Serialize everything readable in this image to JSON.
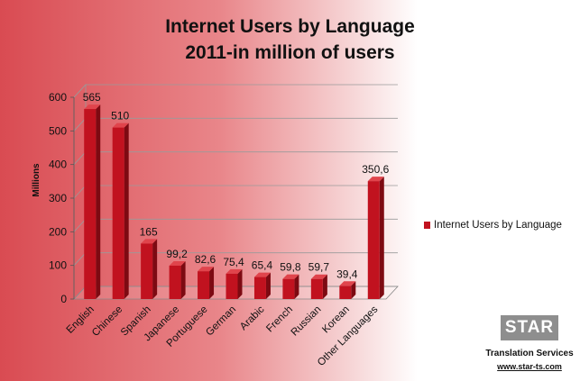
{
  "header": {
    "title_line1": "Internet Users by Language",
    "title_line2": "2011-in million of users"
  },
  "legend": {
    "label": "Internet Users by Language"
  },
  "branding": {
    "logo_text": "STAR",
    "tagline": "Translation Services",
    "url": "www.star-ts.com"
  },
  "chart_data": {
    "type": "bar",
    "title": "Internet Users by Language\n2011-in million of users",
    "ylabel": "Millions",
    "xlabel": "",
    "ylim": [
      0,
      600
    ],
    "yticks": [
      0,
      100,
      200,
      300,
      400,
      500,
      600
    ],
    "grid": true,
    "legend_position": "right",
    "bar_color": "#c1121f",
    "categories": [
      "English",
      "Chinese",
      "Spanish",
      "Japanese",
      "Portuguese",
      "German",
      "Arabic",
      "French",
      "Russian",
      "Korean",
      "Other Languages"
    ],
    "series": [
      {
        "name": "Internet Users by Language",
        "values": [
          565,
          510,
          165,
          99.2,
          82.6,
          75.4,
          65.4,
          59.8,
          59.7,
          39.4,
          350.6
        ],
        "labels": [
          "565",
          "510",
          "165",
          "99,2",
          "82,6",
          "75,4",
          "65,4",
          "59,8",
          "59,7",
          "39,4",
          "350,6"
        ]
      }
    ]
  }
}
